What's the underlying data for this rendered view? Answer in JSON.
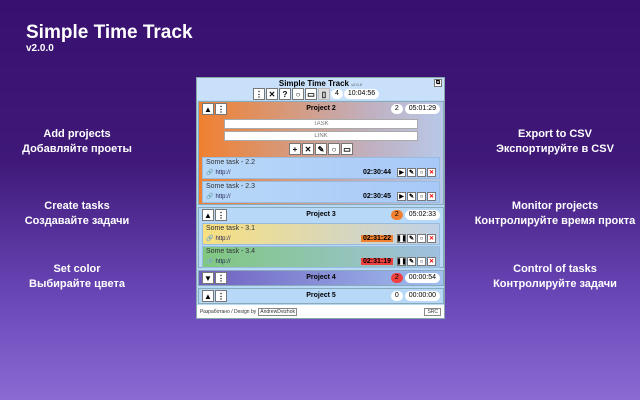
{
  "promo": {
    "title": "Simple Time Track",
    "version": "v2.0.0",
    "features": [
      {
        "en": "Add projects",
        "ru": "Добавляйте проеты"
      },
      {
        "en": "Create tasks",
        "ru": "Создавайте задачи"
      },
      {
        "en": "Set color",
        "ru": "Выбирайте цвета"
      },
      {
        "en": "Export to CSV",
        "ru": "Экспортируйте в CSV"
      },
      {
        "en": "Monitor projects",
        "ru": "Контролируйте время прокта"
      },
      {
        "en": "Control of tasks",
        "ru": "Контролируйте задачи"
      }
    ]
  },
  "app": {
    "title": "Simple Time Track",
    "version": "v2.0.0",
    "project_count": "4",
    "total_time": "10:04:56",
    "toolbar": {
      "menu": "⋮",
      "close": "✕",
      "help": "?",
      "reset": "○",
      "export": "▭",
      "split": "▯"
    }
  },
  "projects": [
    {
      "name": "Project 2",
      "task_count": "2",
      "time": "05:01:29",
      "expanded": true,
      "color": "#f08030",
      "task_placeholder": "TASK",
      "link_placeholder": "LINK",
      "tasks": [
        {
          "name": "Some task - 2.2",
          "link": "http://",
          "time": "02:30:44",
          "running": false
        },
        {
          "name": "Some task - 2.3",
          "link": "http://",
          "time": "02:30:45",
          "running": false
        }
      ]
    },
    {
      "name": "Project 3",
      "task_count": "2",
      "time": "05:02:33",
      "expanded": true,
      "count_color": "#f08030",
      "tasks": [
        {
          "name": "Some task - 3.1",
          "link": "http://",
          "time": "02:31:22",
          "running": true,
          "color": "#f8e080",
          "time_color": "#f08030"
        },
        {
          "name": "Some task - 3.4",
          "link": "http://",
          "time": "02:31:19",
          "running": true,
          "color": "#80c880",
          "time_color": "#f04040"
        }
      ]
    },
    {
      "name": "Project 4",
      "task_count": "2",
      "time": "00:00:54",
      "expanded": false,
      "count_color": "#f04040",
      "color": "#7060c0"
    },
    {
      "name": "Project 5",
      "task_count": "0",
      "time": "00:00:00",
      "expanded": true
    }
  ],
  "footer": {
    "credit": "Разработано / Design by",
    "author": "AndrewDvizhok",
    "src": "SRC"
  }
}
